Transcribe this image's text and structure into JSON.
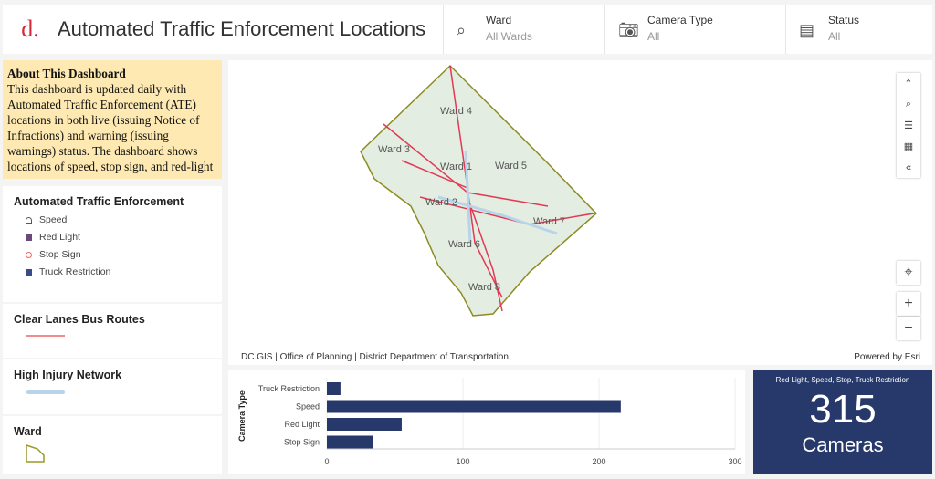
{
  "header": {
    "logo": "d.",
    "title": "Automated Traffic Enforcement Locations",
    "filters": [
      {
        "label": "Ward",
        "value": "All Wards",
        "icon": "map-pin-search-icon"
      },
      {
        "label": "Camera Type",
        "value": "All",
        "icon": "camera-icon"
      },
      {
        "label": "Status",
        "value": "All",
        "icon": "form-icon"
      }
    ]
  },
  "about": {
    "title": "About This Dashboard",
    "body": "This dashboard is updated daily with Automated Traffic Enforcement (ATE) locations in both live (issuing Notice of Infractions) and warning (issuing warnings) status. The dashboard shows locations of speed, stop sign, and red-light"
  },
  "legend": {
    "ate": {
      "title": "Automated Traffic Enforcement",
      "items": [
        "Speed",
        "Red Light",
        "Stop Sign",
        "Truck Restriction"
      ]
    },
    "bus": {
      "title": "Clear Lanes Bus Routes",
      "color": "#f28b8b"
    },
    "hin": {
      "title": "High Injury Network",
      "color": "#b8d4ea"
    },
    "ward": {
      "title": "Ward",
      "color": "#9a9a2a"
    }
  },
  "map": {
    "wards": [
      "Ward 1",
      "Ward 2",
      "Ward 3",
      "Ward 4",
      "Ward 5",
      "Ward 6",
      "Ward 7",
      "Ward 8"
    ],
    "attribution": "DC GIS | Office of Planning | District Department of Transportation",
    "powered": "Powered by Esri"
  },
  "chart_data": {
    "type": "bar",
    "orientation": "horizontal",
    "ylabel": "Camera Type",
    "xlabel": "",
    "categories": [
      "Truck Restriction",
      "Speed",
      "Red Light",
      "Stop Sign"
    ],
    "values": [
      10,
      216,
      55,
      34
    ],
    "xlim": [
      0,
      300
    ],
    "xticks": [
      0,
      100,
      200,
      300
    ],
    "color": "#27396b"
  },
  "kpi": {
    "subtitle": "Red Light, Speed, Stop, Truck Restriction",
    "value": "315",
    "label": "Cameras"
  }
}
